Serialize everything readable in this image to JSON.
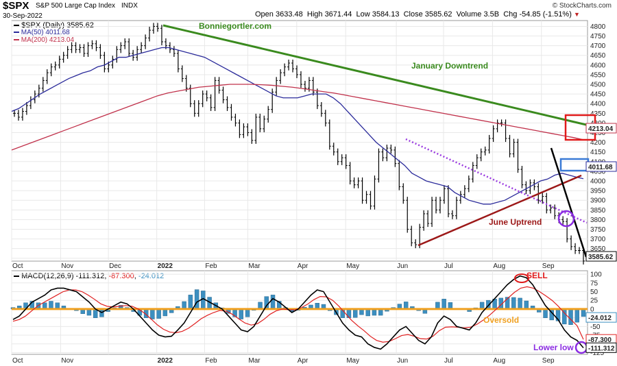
{
  "header": {
    "symbol": "$SPX",
    "name": "S&P 500 Large Cap Index",
    "exchange": "INDX",
    "date": "30-Sep-2022",
    "open_label": "Open",
    "open": "3633.48",
    "high_label": "High",
    "high": "3671.44",
    "low_label": "Low",
    "low": "3584.13",
    "close_label": "Close",
    "close": "3585.62",
    "volume_label": "Volume",
    "volume": "3.5B",
    "chg_label": "Chg",
    "chg": "-54.85 (-1.51%)",
    "chg_arrow": "▼",
    "watermark": "© StockCharts.com"
  },
  "legend": {
    "price": "$SPX (Daily) 3585.62",
    "ma50": "MA(50) 4011.68",
    "ma200": "MA(200) 4213.04"
  },
  "colors": {
    "price": "#000000",
    "ma50": "#2a2a9a",
    "ma200": "#c0304a",
    "downtrend": "#3a8a1e",
    "uptrend": "#9c1818",
    "dotted": "#9a3ae0",
    "blackline": "#000000",
    "red_box": "#e01a1a",
    "blue_box": "#3a7ad6",
    "purple_circle": "#8a2be2",
    "macd_line": "#000000",
    "signal_line": "#e02020",
    "histogram": "#3c8fc0",
    "zero_line": "#f0a020",
    "oversold": "#f0a020",
    "grid": "#e8e8e8"
  },
  "annotations": {
    "site": "Bonniegortler.com",
    "january_downtrend": "January Downtrend",
    "june_uptrend": "June Uptrend",
    "sell": "SELL",
    "oversold": "Oversold",
    "lower_low": "Lower low"
  },
  "price_tags": {
    "ma200": "4213.04",
    "ma50": "4011.68",
    "close": "3585.62"
  },
  "macd": {
    "legend_label": "MACD(12,26,9)",
    "macd": "-111.312",
    "signal": "-87.300",
    "hist": "-24.012",
    "tags": [
      "-24.012",
      "-87.300",
      "-111.312"
    ]
  },
  "chart_data": [
    {
      "type": "line",
      "panel": "price",
      "title": "$SPX (Daily)",
      "ylim": [
        3585,
        4830
      ],
      "yticks": [
        3600,
        3650,
        3700,
        3750,
        3800,
        3850,
        3900,
        3950,
        4000,
        4050,
        4100,
        4150,
        4200,
        4250,
        4300,
        4350,
        4400,
        4450,
        4500,
        4550,
        4600,
        4650,
        4700,
        4750,
        4800
      ],
      "x_tick_labels": [
        "Oct",
        "Nov",
        "Dec",
        "2022",
        "Feb",
        "Mar",
        "Apr",
        "May",
        "Jun",
        "Jul",
        "Aug",
        "Sep"
      ],
      "x_tick_frac": [
        0.0,
        0.085,
        0.168,
        0.252,
        0.335,
        0.41,
        0.495,
        0.58,
        0.668,
        0.75,
        0.835,
        0.92
      ],
      "series": [
        {
          "name": "$SPX",
          "values": [
            4350,
            4330,
            4360,
            4390,
            4420,
            4450,
            4480,
            4520,
            4560,
            4590,
            4600,
            4630,
            4650,
            4680,
            4700,
            4680,
            4690,
            4660,
            4700,
            4710,
            4690,
            4650,
            4580,
            4600,
            4630,
            4680,
            4700,
            4720,
            4660,
            4640,
            4680,
            4700,
            4740,
            4780,
            4800,
            4790,
            4720,
            4700,
            4680,
            4660,
            4580,
            4530,
            4480,
            4400,
            4350,
            4400,
            4450,
            4430,
            4380,
            4520,
            4470,
            4420,
            4380,
            4330,
            4300,
            4240,
            4280,
            4250,
            4210,
            4330,
            4270,
            4320,
            4370,
            4460,
            4520,
            4560,
            4590,
            4610,
            4580,
            4550,
            4500,
            4480,
            4520,
            4460,
            4390,
            4350,
            4300,
            4180,
            4150,
            4100,
            4120,
            4080,
            4000,
            3980,
            4000,
            3900,
            3930,
            3870,
            4010,
            4150,
            4120,
            4170,
            4160,
            4090,
            3970,
            3900,
            3750,
            3680,
            3670,
            3760,
            3830,
            3780,
            3900,
            3850,
            3900,
            3960,
            3830,
            3820,
            3900,
            3930,
            3960,
            4010,
            4080,
            4120,
            4150,
            4160,
            4220,
            4270,
            4300,
            4300,
            4220,
            4140,
            4200,
            4060,
            3980,
            3950,
            3990,
            3970,
            3900,
            3920,
            3850,
            3860,
            3820,
            3800,
            3790,
            3700,
            3660,
            3640,
            3640,
            3585.62
          ]
        },
        {
          "name": "MA(50)",
          "values": [
            4360,
            4375,
            4400,
            4425,
            4450,
            4470,
            4490,
            4510,
            4530,
            4545,
            4560,
            4570,
            4590,
            4600,
            4620,
            4640,
            4640,
            4650,
            4660,
            4670,
            4680,
            4690,
            4690,
            4680,
            4670,
            4660,
            4650,
            4640,
            4620,
            4600,
            4580,
            4560,
            4540,
            4520,
            4500,
            4480,
            4460,
            4440,
            4430,
            4430,
            4430,
            4440,
            4450,
            4450,
            4450,
            4430,
            4400,
            4360,
            4320,
            4280,
            4240,
            4200,
            4170,
            4140,
            4110,
            4080,
            4040,
            4020,
            4000,
            3990,
            3980,
            3970,
            3940,
            3920,
            3900,
            3890,
            3880,
            3880,
            3890,
            3900,
            3920,
            3940,
            3960,
            3980,
            4000,
            4010,
            4030,
            4040,
            4030,
            4020,
            4011.68
          ]
        },
        {
          "name": "MA(200)",
          "values": [
            4160,
            4180,
            4200,
            4220,
            4240,
            4260,
            4280,
            4300,
            4320,
            4340,
            4360,
            4380,
            4400,
            4420,
            4440,
            4455,
            4465,
            4475,
            4485,
            4490,
            4495,
            4500,
            4500,
            4500,
            4498,
            4495,
            4490,
            4485,
            4478,
            4470,
            4462,
            4455,
            4445,
            4435,
            4425,
            4415,
            4405,
            4395,
            4385,
            4375,
            4365,
            4355,
            4345,
            4335,
            4325,
            4315,
            4305,
            4295,
            4285,
            4275,
            4265,
            4255,
            4245,
            4235,
            4225,
            4213.04
          ]
        }
      ]
    },
    {
      "type": "line",
      "panel": "macd",
      "title": "MACD(12,26,9)",
      "ylim": [
        -130,
        110
      ],
      "yticks": [
        -125,
        -100,
        -75,
        -50,
        -25,
        0,
        25,
        50,
        75,
        100
      ],
      "x_tick_labels": [
        "Oct",
        "Nov",
        "2022",
        "Feb",
        "Mar",
        "Apr",
        "May",
        "Jun",
        "Jul",
        "Aug",
        "Sep"
      ],
      "series": [
        {
          "name": "MACD",
          "values": [
            -30,
            -20,
            0,
            20,
            30,
            40,
            55,
            60,
            60,
            55,
            50,
            35,
            20,
            0,
            -10,
            0,
            10,
            20,
            15,
            0,
            -20,
            -40,
            -60,
            -75,
            -80,
            -78,
            -60,
            -40,
            -10,
            20,
            30,
            20,
            10,
            0,
            -20,
            -40,
            -60,
            -65,
            -50,
            -20,
            10,
            30,
            20,
            5,
            -10,
            0,
            20,
            40,
            55,
            50,
            20,
            -10,
            -40,
            -60,
            -75,
            -80,
            -100,
            -110,
            -115,
            -100,
            -80,
            -60,
            -50,
            -70,
            -90,
            -100,
            -80,
            -40,
            -20,
            -30,
            -50,
            -55,
            -60,
            -40,
            -10,
            10,
            30,
            50,
            70,
            85,
            95,
            90,
            70,
            40,
            10,
            -10,
            -30,
            -60,
            -80,
            -90,
            -111.312
          ]
        },
        {
          "name": "Signal",
          "values": [
            -35,
            -30,
            -20,
            -5,
            10,
            20,
            30,
            40,
            50,
            55,
            55,
            50,
            40,
            28,
            15,
            8,
            6,
            8,
            10,
            8,
            0,
            -12,
            -28,
            -45,
            -58,
            -66,
            -68,
            -64,
            -55,
            -42,
            -28,
            -18,
            -10,
            -4,
            -6,
            -15,
            -28,
            -40,
            -46,
            -42,
            -30,
            -15,
            -5,
            0,
            -2,
            -2,
            4,
            14,
            27,
            36,
            35,
            25,
            8,
            -12,
            -32,
            -48,
            -62,
            -78,
            -90,
            -95,
            -93,
            -85,
            -76,
            -73,
            -78,
            -85,
            -86,
            -78,
            -62,
            -52,
            -51,
            -52,
            -54,
            -52,
            -44,
            -32,
            -18,
            -2,
            15,
            32,
            48,
            60,
            64,
            60,
            50,
            38,
            25,
            8,
            -12,
            -30,
            -48,
            -87.3
          ]
        }
      ]
    }
  ]
}
